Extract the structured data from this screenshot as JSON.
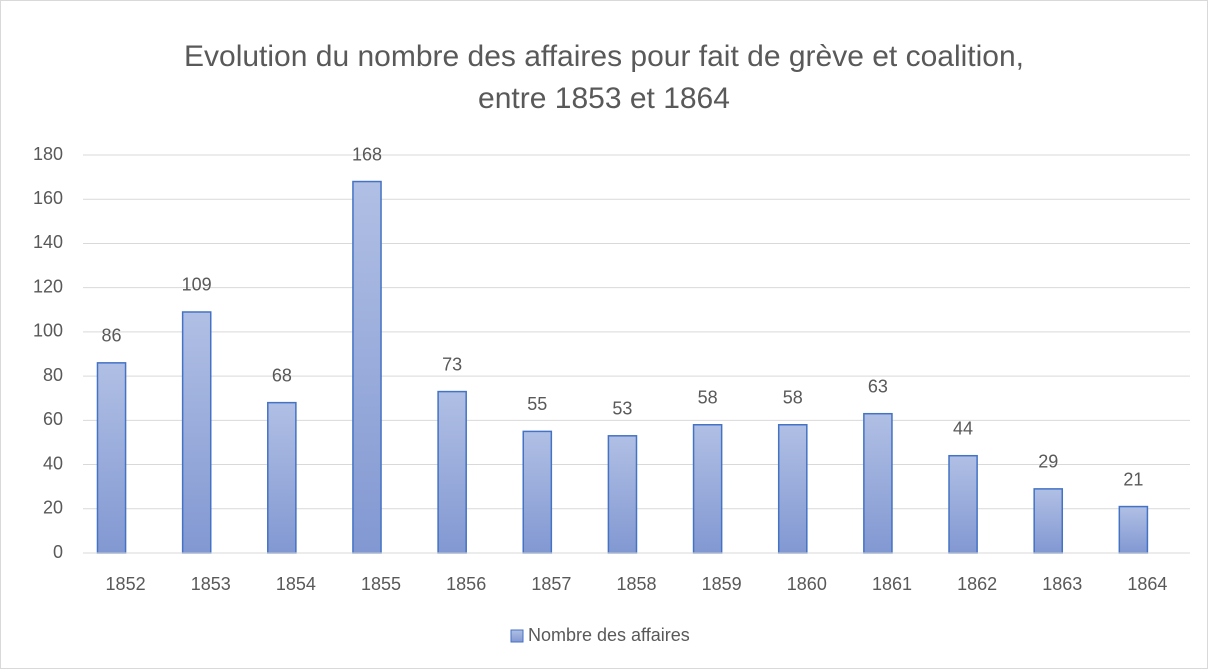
{
  "chart_data": {
    "type": "bar",
    "title": "Evolution du nombre des affaires pour fait de grève et coalition, entre 1853 et 1864",
    "categories": [
      "1852",
      "1853",
      "1854",
      "1855",
      "1856",
      "1857",
      "1858",
      "1859",
      "1860",
      "1861",
      "1862",
      "1863",
      "1864"
    ],
    "series": [
      {
        "name": "Nombre des affaires",
        "color": "#4472c4",
        "values": [
          86,
          109,
          68,
          168,
          73,
          55,
          53,
          58,
          58,
          63,
          44,
          29,
          21
        ]
      }
    ],
    "ylim": [
      0,
      180
    ],
    "yticks": [
      0,
      20,
      40,
      60,
      80,
      100,
      120,
      140,
      160,
      180
    ],
    "grid": true,
    "legend": "bottom"
  }
}
